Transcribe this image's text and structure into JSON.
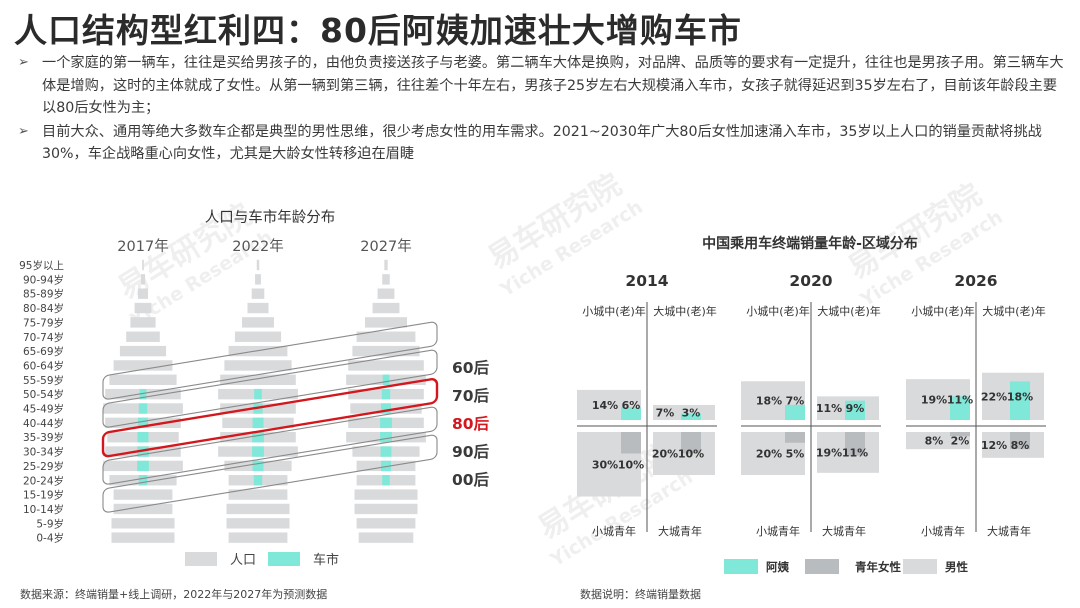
{
  "title": "人口结构型红利四：80后阿姨加速壮大增购车市",
  "bullets": [
    "一个家庭的第一辆车，往往是买给男孩子的，由他负责接送孩子与老婆。第二辆车大体是换购，对品牌、品质等的要求有一定提升，往往也是男孩子用。第三辆车大体是增购，这时的主体就成了女性。从第一辆到第三辆，往往差个十年左右，男孩子25岁左右大规模涌入车市，女孩子就得延迟到35岁左右了，目前该年龄段主要以80后女性为主；",
    "目前大众、通用等绝大多数车企都是典型的男性思维，很少考虑女性的用车需求。2021~2030年广大80后女性加速涌入车市，35岁以上人口的销量贡献将挑战30%，车企战略重心向女性，尤其是大龄女性转移迫在眉睫"
  ],
  "bullet_icon": "arrow-right-icon",
  "footnote_left": "数据来源：终端销量+线上调研，2022年与2027年为预测数据",
  "footnote_right": "数据说明：终端销量数据",
  "watermark": "易车研究院 Yiche Research",
  "colors": {
    "population": "#d9dadc",
    "car_market": "#7fe8d8",
    "highlight": "#d3171c",
    "young_female": "#b9bcbf",
    "male": "#d9dadc",
    "aunt": "#7fe8d8"
  },
  "chart_data": [
    {
      "type": "bar",
      "subtype": "population-pyramid",
      "title": "人口与车市年龄分布",
      "columns": [
        "2017年",
        "2022年",
        "2027年"
      ],
      "categories": [
        "95岁以上",
        "90-94岁",
        "85-89岁",
        "80-84岁",
        "75-79岁",
        "70-74岁",
        "65-69岁",
        "60-64岁",
        "55-59岁",
        "50-54岁",
        "45-49岁",
        "40-44岁",
        "35-39岁",
        "30-34岁",
        "25-29岁",
        "20-24岁",
        "15-19岁",
        "10-14岁",
        "5-9岁",
        "0-4岁"
      ],
      "series": [
        {
          "name": "人口",
          "values": {
            "2017年": [
              0.2,
              0.5,
              1.2,
              2.0,
              3.0,
              4.0,
              5.5,
              7.0,
              8.0,
              9.0,
              9.5,
              9.0,
              8.5,
              9.0,
              9.5,
              8.0,
              7.0,
              7.0,
              7.5,
              7.5
            ],
            "2022年": [
              0.3,
              0.7,
              1.5,
              2.5,
              3.8,
              5.5,
              7.0,
              8.0,
              9.0,
              9.5,
              9.0,
              8.5,
              9.0,
              9.5,
              8.0,
              7.0,
              7.0,
              7.5,
              7.5,
              7.0
            ],
            "2027年": [
              0.4,
              0.9,
              2.0,
              3.2,
              5.0,
              7.0,
              8.0,
              9.0,
              9.5,
              9.0,
              8.5,
              9.0,
              9.5,
              8.0,
              7.0,
              7.0,
              7.5,
              7.5,
              7.0,
              6.5
            ]
          }
        },
        {
          "name": "车市",
          "values": {
            "2017年": [
              0,
              0,
              0,
              0,
              0,
              0,
              0,
              0,
              0,
              0.8,
              1.0,
              1.2,
              1.3,
              1.4,
              1.4,
              1.0,
              0,
              0,
              0,
              0
            ],
            "2022年": [
              0,
              0,
              0,
              0,
              0,
              0,
              0,
              0,
              0,
              0.9,
              1.1,
              1.3,
              1.4,
              1.4,
              1.3,
              1.0,
              0,
              0,
              0,
              0
            ],
            "2027年": [
              0,
              0,
              0,
              0,
              0,
              0,
              0,
              0,
              0.8,
              1.0,
              1.2,
              1.4,
              1.4,
              1.3,
              1.2,
              0.9,
              0,
              0,
              0,
              0
            ]
          }
        }
      ],
      "cohorts": [
        {
          "label": "60后",
          "highlight": false
        },
        {
          "label": "70后",
          "highlight": false
        },
        {
          "label": "80后",
          "highlight": true
        },
        {
          "label": "90后",
          "highlight": false
        },
        {
          "label": "00后",
          "highlight": false
        }
      ],
      "legend": [
        "人口",
        "车市"
      ]
    },
    {
      "type": "bar",
      "subtype": "quadrant-bars",
      "title": "中国乘用车终端销量年龄-区域分布",
      "years": [
        "2014",
        "2020",
        "2026"
      ],
      "quadrant_labels": {
        "top_left": "小城中(老)年",
        "top_right": "大城中(老)年",
        "bottom_left": "小城青年",
        "bottom_right": "大城青年"
      },
      "series_names": {
        "total": "男性",
        "aunt": "阿姨",
        "young_female": "青年女性"
      },
      "panels": [
        {
          "year": "2014",
          "top_left": {
            "total": 14,
            "female": 6
          },
          "top_right": {
            "total": 7,
            "female": 3
          },
          "bottom_left": {
            "total": 30,
            "female": 10
          },
          "bottom_right": {
            "total": 20,
            "female": 10
          }
        },
        {
          "year": "2020",
          "top_left": {
            "total": 18,
            "female": 7
          },
          "top_right": {
            "total": 11,
            "female": 9
          },
          "bottom_left": {
            "total": 20,
            "female": 5
          },
          "bottom_right": {
            "total": 19,
            "female": 11
          }
        },
        {
          "year": "2026",
          "top_left": {
            "total": 19,
            "female": 11
          },
          "top_right": {
            "total": 22,
            "female": 18
          },
          "bottom_left": {
            "total": 8,
            "female": 2
          },
          "bottom_right": {
            "total": 12,
            "female": 8
          }
        }
      ],
      "legend": [
        "阿姨",
        "青年女性",
        "男性"
      ]
    }
  ]
}
